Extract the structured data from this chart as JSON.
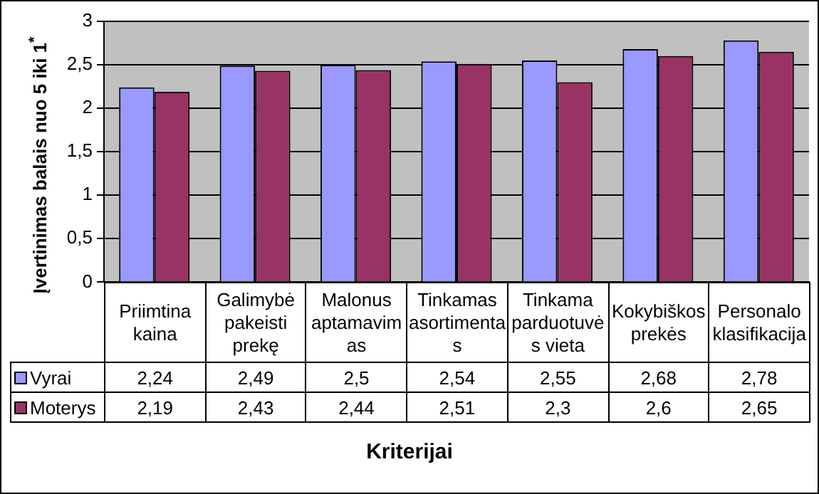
{
  "chart_data": {
    "type": "bar",
    "ylabel": "Įvertinimas balais nuo 5 iki 1$^{*}$",
    "xlabel": "Kriterijai",
    "categories": [
      "Priimtina kaina",
      "Galimybė pakeisti prekę",
      "Malonus aptamavimas",
      "Tinkamas asortimentas",
      "Tinkama parduotuvės vieta",
      "Kokybiškos prekės",
      "Personalo klasifikacija"
    ],
    "series": [
      {
        "name": "Vyrai",
        "color": "#9999ff",
        "values": [
          2.24,
          2.49,
          2.5,
          2.54,
          2.55,
          2.68,
          2.78
        ],
        "value_labels": [
          "2,24",
          "2,49",
          "2,5",
          "2,54",
          "2,55",
          "2,68",
          "2,78"
        ]
      },
      {
        "name": "Moterys",
        "color": "#993366",
        "values": [
          2.19,
          2.43,
          2.44,
          2.51,
          2.3,
          2.6,
          2.65
        ],
        "value_labels": [
          "2,19",
          "2,43",
          "2,44",
          "2,51",
          "2,3",
          "2,6",
          "2,65"
        ]
      }
    ],
    "ylim": [
      0,
      3
    ],
    "yticks": [
      0,
      {
        "value": 0.5,
        "label": "0,5"
      },
      1,
      {
        "value": 1.5,
        "label": "1,5"
      },
      2,
      {
        "value": 2.5,
        "label": "2,5"
      },
      3
    ],
    "grid": "y",
    "legend": "bottom"
  }
}
